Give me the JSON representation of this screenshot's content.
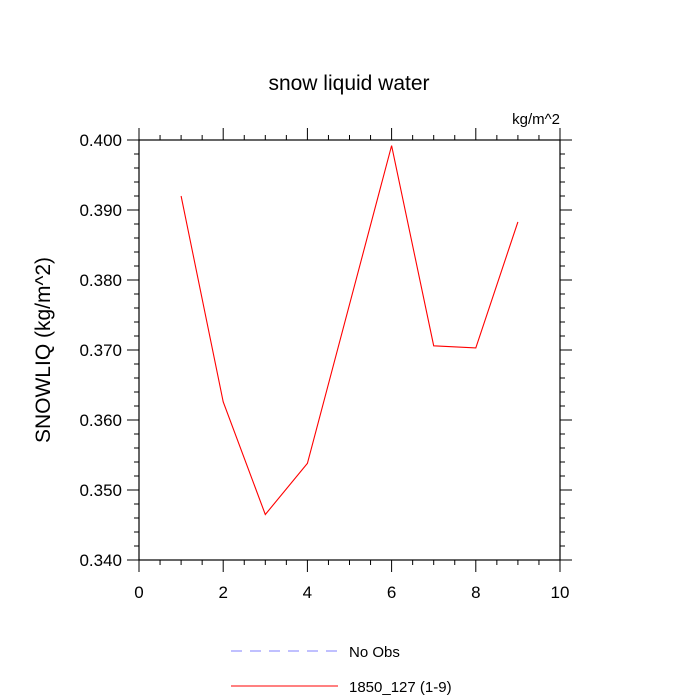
{
  "chart_data": {
    "type": "line",
    "title": "snow liquid water",
    "units": "kg/m^2",
    "xlabel": "",
    "ylabel": "SNOWLIQ  (kg/m^2)",
    "xlim": [
      0,
      10
    ],
    "ylim": [
      0.34,
      0.4
    ],
    "x_ticks": [
      "0",
      "2",
      "4",
      "6",
      "8",
      "10"
    ],
    "y_ticks": [
      "0.340",
      "0.350",
      "0.360",
      "0.370",
      "0.380",
      "0.390",
      "0.400"
    ],
    "grid": false,
    "legend_placement": "bottom-center",
    "series": [
      {
        "name": "1850_127 (1-9)",
        "color": "#ff0000",
        "dash": "solid",
        "x": [
          1,
          2,
          3,
          4,
          5,
          6,
          7,
          8,
          9
        ],
        "values": [
          0.392,
          0.3626,
          0.3465,
          0.3538,
          0.3765,
          0.3992,
          0.3706,
          0.3703,
          0.3883
        ]
      }
    ],
    "legend": [
      {
        "label": "No Obs",
        "color": "#8080ff",
        "dash": "dashed"
      },
      {
        "label": "1850_127 (1-9)",
        "color": "#ff0000",
        "dash": "solid"
      }
    ]
  }
}
